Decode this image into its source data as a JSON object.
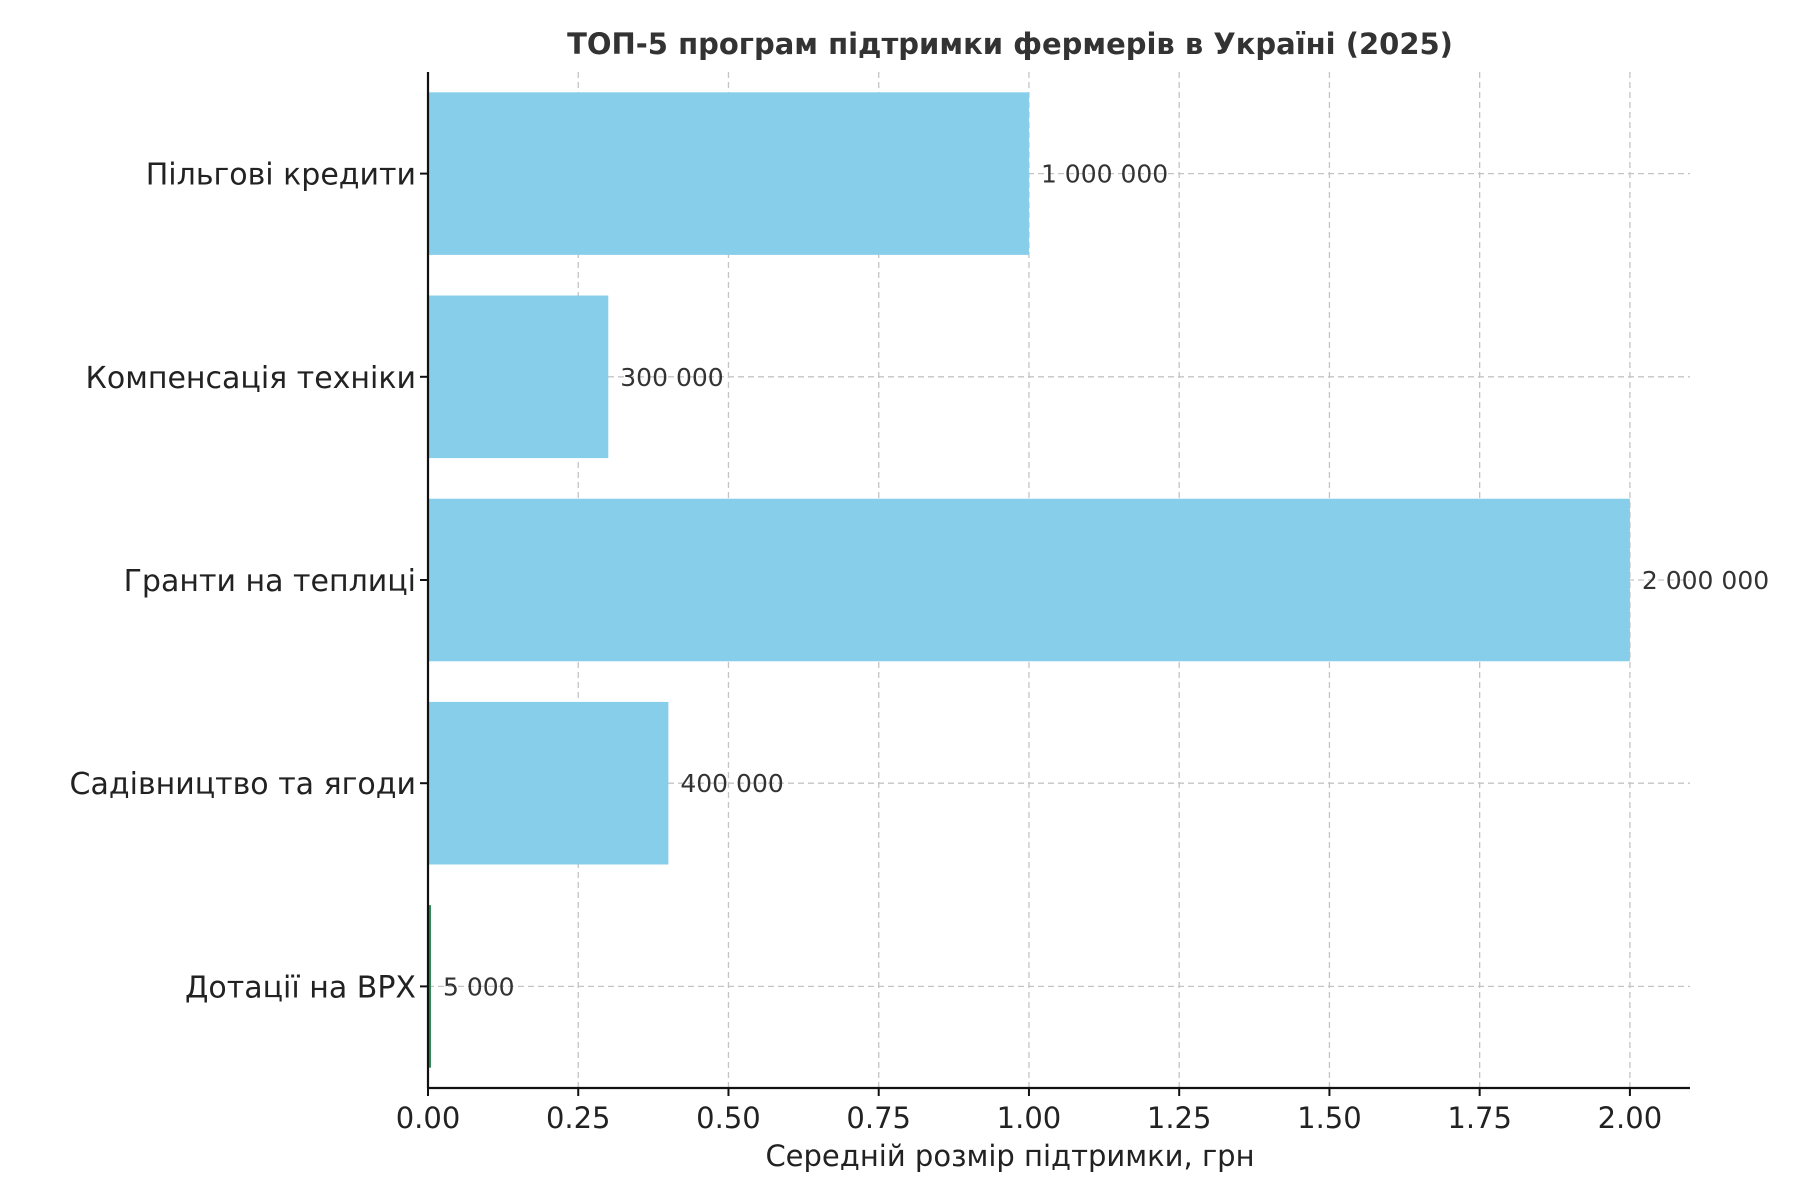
{
  "chart_data": {
    "type": "bar",
    "orientation": "horizontal",
    "title": "ТОП-5 програм підтримки фермерів в Україні (2025)",
    "xlabel": "Середній розмір підтримки, грн",
    "ylabel": "",
    "categories": [
      "Пільгові кредити",
      "Компенсація техніки",
      "Гранти на теплиці",
      "Садівництво та ягоди",
      "Дотації на ВРХ"
    ],
    "values": [
      1.0,
      0.3,
      2.0,
      0.4,
      0.005
    ],
    "value_labels": [
      "1 000 000",
      "300 000",
      "2 000 000",
      "400 000",
      "5 000"
    ],
    "xlim": [
      0,
      2.1
    ],
    "xticks": [
      0.0,
      0.25,
      0.5,
      0.75,
      1.0,
      1.25,
      1.5,
      1.75,
      2.0
    ],
    "xtick_labels": [
      "0.00",
      "0.25",
      "0.50",
      "0.75",
      "1.00",
      "1.25",
      "1.50",
      "1.75",
      "2.00"
    ],
    "grid": true,
    "colors": {
      "bar": "#87ceeb",
      "small_bar": "#2e8b57"
    }
  }
}
